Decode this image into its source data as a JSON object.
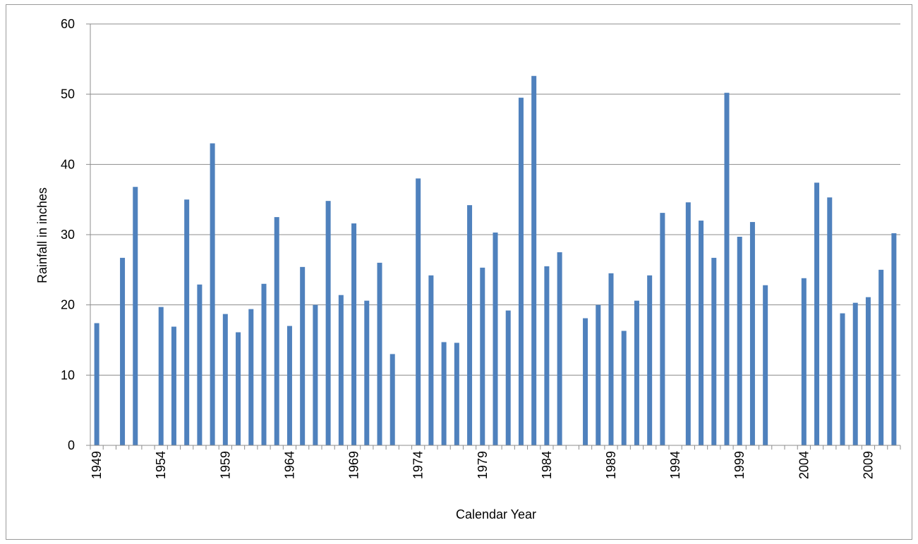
{
  "chart_data": {
    "type": "bar",
    "xlabel": "Calendar Year",
    "ylabel": "Rainfall in inches",
    "ylim": [
      0,
      60
    ],
    "yticks": [
      0,
      10,
      20,
      30,
      40,
      50,
      60
    ],
    "grid": true,
    "bar_color": "#4f81bd",
    "x": [
      1949,
      1950,
      1951,
      1952,
      1953,
      1954,
      1955,
      1956,
      1957,
      1958,
      1959,
      1960,
      1961,
      1962,
      1963,
      1964,
      1965,
      1966,
      1967,
      1968,
      1969,
      1970,
      1971,
      1972,
      1973,
      1974,
      1975,
      1976,
      1977,
      1978,
      1979,
      1980,
      1981,
      1982,
      1983,
      1984,
      1985,
      1986,
      1987,
      1988,
      1989,
      1990,
      1991,
      1992,
      1993,
      1994,
      1995,
      1996,
      1997,
      1998,
      1999,
      2000,
      2001,
      2002,
      2003,
      2004,
      2005,
      2006,
      2007,
      2008,
      2009,
      2010,
      2011
    ],
    "x_tick_labels": [
      "1949",
      "1954",
      "1959",
      "1964",
      "1969",
      "1974",
      "1979",
      "1984",
      "1989",
      "1994",
      "1999",
      "2004",
      "2009"
    ],
    "values": [
      17.4,
      null,
      26.7,
      36.8,
      null,
      19.7,
      16.9,
      35.0,
      22.9,
      43.0,
      18.7,
      16.1,
      19.4,
      23.0,
      32.5,
      17.0,
      25.4,
      20.0,
      34.8,
      21.4,
      31.6,
      20.6,
      26.0,
      13.0,
      null,
      38.0,
      24.2,
      14.7,
      14.6,
      34.2,
      25.3,
      30.3,
      19.2,
      49.5,
      52.6,
      25.5,
      27.5,
      null,
      18.1,
      20.0,
      24.5,
      16.3,
      20.6,
      24.2,
      33.1,
      null,
      34.6,
      32.0,
      26.7,
      50.2,
      29.7,
      31.8,
      22.8,
      null,
      null,
      23.8,
      37.4,
      35.3,
      18.8,
      20.3,
      21.1,
      25.0,
      30.2
    ]
  }
}
